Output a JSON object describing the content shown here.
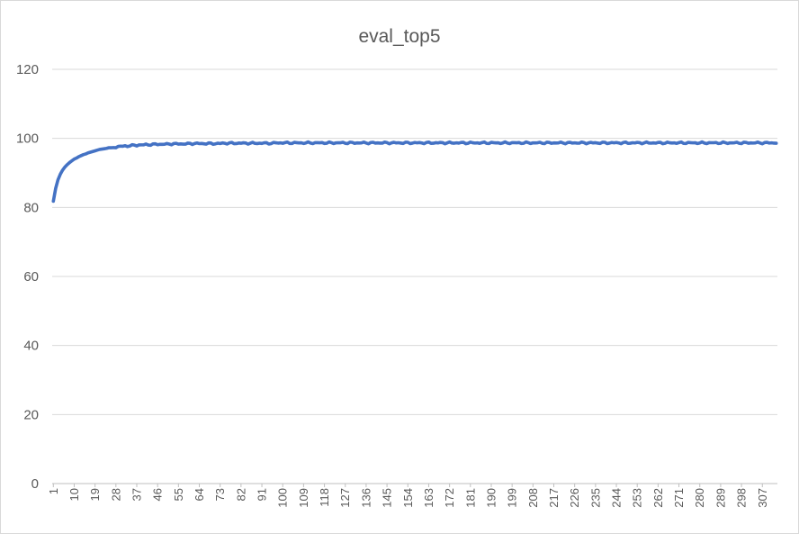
{
  "chart_data": {
    "type": "line",
    "title": "eval_top5",
    "xlabel": "",
    "ylabel": "",
    "ylim": [
      0,
      120
    ],
    "y_ticks": [
      0,
      20,
      40,
      60,
      80,
      100,
      120
    ],
    "x_count": 313,
    "x_tick_labels": [
      "1",
      "10",
      "19",
      "28",
      "37",
      "46",
      "55",
      "64",
      "73",
      "82",
      "91",
      "100",
      "109",
      "118",
      "127",
      "136",
      "145",
      "154",
      "163",
      "172",
      "181",
      "190",
      "199",
      "208",
      "217",
      "226",
      "235",
      "244",
      "253",
      "262",
      "271",
      "280",
      "289",
      "298",
      "307"
    ],
    "grid": true,
    "legend": "none",
    "series": [
      {
        "color": "#4472c4",
        "values": [
          81.8,
          85.5,
          88.0,
          89.6,
          90.8,
          91.7,
          92.4,
          93.0,
          93.5,
          94.0,
          94.3,
          94.7,
          95.0,
          95.3,
          95.5,
          95.8,
          96.0,
          96.2,
          96.4,
          96.6,
          96.8,
          96.9,
          97.0,
          97.1,
          97.3,
          97.3,
          97.4,
          97.5,
          97.6,
          97.7,
          97.7,
          97.8,
          97.8,
          97.9,
          97.9,
          98.0,
          98.0,
          98.1,
          98.1,
          98.1,
          98.2,
          98.2,
          98.2,
          98.2,
          98.3,
          98.3,
          98.3,
          98.3,
          98.3,
          98.3,
          98.4,
          98.4,
          98.4,
          98.4,
          98.4,
          98.4,
          98.4,
          98.4,
          98.4,
          98.5,
          98.5,
          98.5,
          98.5,
          98.5,
          98.5,
          98.5,
          98.5,
          98.5,
          98.5,
          98.5,
          98.5,
          98.5,
          98.5,
          98.6,
          98.6,
          98.6,
          98.6,
          98.6,
          98.6,
          98.6,
          98.6,
          98.6,
          98.6,
          98.6,
          98.6,
          98.6,
          98.6,
          98.6,
          98.6,
          98.6,
          98.6,
          98.6,
          98.6,
          98.6,
          98.6,
          98.6,
          98.7,
          98.7,
          98.7,
          98.7,
          98.7,
          98.7,
          98.7,
          98.7,
          98.7,
          98.7,
          98.7,
          98.7,
          98.7,
          98.7,
          98.7,
          98.7,
          98.7,
          98.7,
          98.7,
          98.7,
          98.7,
          98.7,
          98.7,
          98.7,
          98.7,
          98.7,
          98.7,
          98.7,
          98.7,
          98.7,
          98.7,
          98.7,
          98.7,
          98.7,
          98.7,
          98.7,
          98.7,
          98.7,
          98.7,
          98.7,
          98.7,
          98.7,
          98.7,
          98.7,
          98.7,
          98.7,
          98.7,
          98.7,
          98.7,
          98.7,
          98.7,
          98.7,
          98.7,
          98.7,
          98.7,
          98.7,
          98.7,
          98.7,
          98.7,
          98.7,
          98.7,
          98.7,
          98.7,
          98.7,
          98.7,
          98.7,
          98.7,
          98.7,
          98.7,
          98.7,
          98.7,
          98.7,
          98.7,
          98.7,
          98.7,
          98.7,
          98.7,
          98.7,
          98.7,
          98.7,
          98.7,
          98.7,
          98.7,
          98.7,
          98.7,
          98.7,
          98.7,
          98.7,
          98.7,
          98.7,
          98.7,
          98.7,
          98.7,
          98.7,
          98.7,
          98.7,
          98.7,
          98.7,
          98.7,
          98.7,
          98.7,
          98.7,
          98.7,
          98.7,
          98.7,
          98.7,
          98.7,
          98.7,
          98.7,
          98.7,
          98.7,
          98.7,
          98.7,
          98.7,
          98.7,
          98.7,
          98.7,
          98.7,
          98.7,
          98.7,
          98.7,
          98.7,
          98.7,
          98.7,
          98.7,
          98.7,
          98.7,
          98.7,
          98.7,
          98.7,
          98.7,
          98.7,
          98.7,
          98.7,
          98.7,
          98.7,
          98.7,
          98.7,
          98.7,
          98.7,
          98.7,
          98.7,
          98.7,
          98.7,
          98.7,
          98.7,
          98.7,
          98.7,
          98.7,
          98.7,
          98.7,
          98.7,
          98.7,
          98.7,
          98.7,
          98.7,
          98.7,
          98.7,
          98.7,
          98.7,
          98.7,
          98.7,
          98.7,
          98.7,
          98.7,
          98.7,
          98.7,
          98.7,
          98.7,
          98.7,
          98.7,
          98.7,
          98.7,
          98.7,
          98.7,
          98.7,
          98.7,
          98.7,
          98.7,
          98.7,
          98.7,
          98.7,
          98.7,
          98.7,
          98.7,
          98.7,
          98.7,
          98.7,
          98.7,
          98.7,
          98.7,
          98.7,
          98.7,
          98.7,
          98.7,
          98.7,
          98.7,
          98.7,
          98.7,
          98.7,
          98.7,
          98.7,
          98.7,
          98.7,
          98.7,
          98.7,
          98.7,
          98.7,
          98.7,
          98.7,
          98.7,
          98.7,
          98.7,
          98.7,
          98.7,
          98.7,
          98.7
        ]
      }
    ]
  }
}
